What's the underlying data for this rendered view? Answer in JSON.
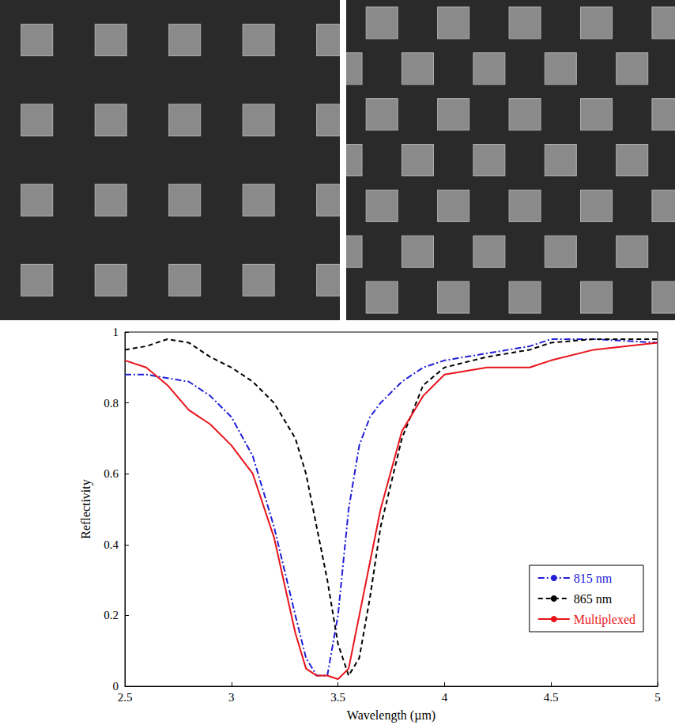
{
  "chart_data": {
    "type": "line",
    "xlabel": "Wavelength (µm)",
    "ylabel": "Reflectivity",
    "x": [
      2.5,
      2.6,
      2.7,
      2.8,
      2.9,
      3.0,
      3.1,
      3.2,
      3.3,
      3.35,
      3.4,
      3.45,
      3.5,
      3.55,
      3.6,
      3.65,
      3.7,
      3.8,
      3.9,
      4.0,
      4.2,
      4.4,
      4.5,
      4.7,
      5.0
    ],
    "series": [
      {
        "name": "815 nm",
        "color": "#2020d8",
        "line_style": "dashdot",
        "values": [
          0.88,
          0.88,
          0.87,
          0.86,
          0.82,
          0.76,
          0.65,
          0.45,
          0.2,
          0.08,
          0.03,
          0.03,
          0.2,
          0.5,
          0.68,
          0.76,
          0.8,
          0.86,
          0.9,
          0.92,
          0.94,
          0.96,
          0.98,
          0.98,
          0.97
        ]
      },
      {
        "name": "865 nm",
        "color": "#000000",
        "line_style": "dashed",
        "values": [
          0.95,
          0.96,
          0.98,
          0.97,
          0.93,
          0.9,
          0.86,
          0.8,
          0.7,
          0.6,
          0.45,
          0.3,
          0.12,
          0.03,
          0.08,
          0.25,
          0.45,
          0.7,
          0.85,
          0.9,
          0.93,
          0.95,
          0.97,
          0.98,
          0.98
        ]
      },
      {
        "name": "Multiplexed",
        "color": "#e8141c",
        "line_style": "solid",
        "values": [
          0.92,
          0.9,
          0.85,
          0.78,
          0.74,
          0.68,
          0.6,
          0.42,
          0.15,
          0.05,
          0.03,
          0.03,
          0.02,
          0.05,
          0.2,
          0.35,
          0.5,
          0.72,
          0.82,
          0.88,
          0.9,
          0.9,
          0.92,
          0.95,
          0.97
        ]
      }
    ],
    "xlim": [
      2.5,
      5
    ],
    "xticks": [
      2.5,
      3,
      3.5,
      4,
      4.5,
      5
    ],
    "ylim": [
      0,
      1
    ],
    "yticks": [
      0,
      0.2,
      0.4,
      0.6,
      0.8,
      1
    ],
    "grid": false,
    "legend": "lower right"
  }
}
